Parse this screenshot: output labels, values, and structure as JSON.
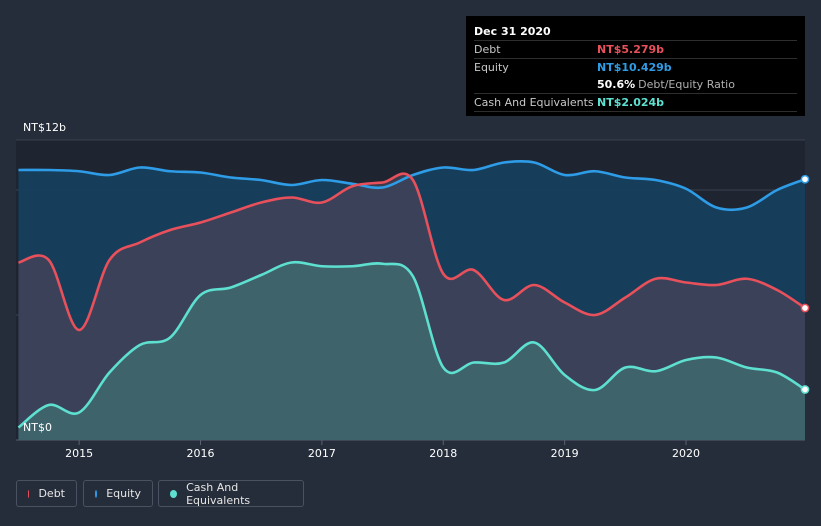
{
  "tooltip": {
    "date": "Dec 31 2020",
    "rows": [
      {
        "label": "Debt",
        "value": "NT$5.279b",
        "color": "#e8505b"
      },
      {
        "label": "Equity",
        "value": "NT$10.429b",
        "color": "#2e9ce6"
      },
      {
        "label": "",
        "value": "50.6%",
        "extra": "Debt/Equity Ratio",
        "color": "#ffffff"
      },
      {
        "label": "Cash And Equivalents",
        "value": "NT$2.024b",
        "color": "#5ee0d0"
      }
    ]
  },
  "legend": [
    {
      "label": "Debt",
      "color": "#e8505b"
    },
    {
      "label": "Equity",
      "color": "#2e9ce6"
    },
    {
      "label": "Cash And Equivalents",
      "color": "#5ee0d0"
    }
  ],
  "chart_data": {
    "type": "area",
    "title": "",
    "xlabel": "",
    "ylabel": "",
    "y_top_label": "NT$12b",
    "y_bottom_label": "NT$0",
    "ylim": [
      0,
      12
    ],
    "xlim": [
      2014.48,
      2020.98
    ],
    "x_ticks": [
      2015,
      2016,
      2017,
      2018,
      2019,
      2020
    ],
    "series": [
      {
        "name": "Equity",
        "color": "#2e9ce6",
        "x": [
          2014.5,
          2014.75,
          2015.0,
          2015.25,
          2015.5,
          2015.75,
          2016.0,
          2016.25,
          2016.5,
          2016.75,
          2017.0,
          2017.25,
          2017.5,
          2017.75,
          2018.0,
          2018.25,
          2018.5,
          2018.75,
          2019.0,
          2019.25,
          2019.5,
          2019.75,
          2020.0,
          2020.25,
          2020.5,
          2020.75,
          2020.98
        ],
        "values": [
          10.8,
          10.8,
          10.75,
          10.6,
          10.9,
          10.75,
          10.7,
          10.5,
          10.4,
          10.2,
          10.4,
          10.25,
          10.1,
          10.6,
          10.9,
          10.8,
          11.1,
          11.1,
          10.6,
          10.75,
          10.5,
          10.4,
          10.05,
          9.3,
          9.3,
          10.0,
          10.43
        ]
      },
      {
        "name": "Debt",
        "color": "#e8505b",
        "x": [
          2014.5,
          2014.75,
          2015.0,
          2015.25,
          2015.5,
          2015.75,
          2016.0,
          2016.25,
          2016.5,
          2016.75,
          2017.0,
          2017.25,
          2017.5,
          2017.75,
          2018.0,
          2018.25,
          2018.5,
          2018.75,
          2019.0,
          2019.25,
          2019.5,
          2019.75,
          2020.0,
          2020.25,
          2020.5,
          2020.75,
          2020.98
        ],
        "values": [
          7.1,
          7.2,
          4.4,
          7.2,
          7.9,
          8.4,
          8.7,
          9.1,
          9.5,
          9.7,
          9.5,
          10.15,
          10.3,
          10.4,
          6.65,
          6.8,
          5.6,
          6.2,
          5.5,
          5.0,
          5.7,
          6.45,
          6.3,
          6.2,
          6.45,
          6.0,
          5.28
        ]
      },
      {
        "name": "Cash And Equivalents",
        "color": "#5ee0d0",
        "x": [
          2014.5,
          2014.75,
          2015.0,
          2015.25,
          2015.5,
          2015.75,
          2016.0,
          2016.25,
          2016.5,
          2016.75,
          2017.0,
          2017.25,
          2017.5,
          2017.75,
          2018.0,
          2018.25,
          2018.5,
          2018.75,
          2019.0,
          2019.25,
          2019.5,
          2019.75,
          2020.0,
          2020.25,
          2020.5,
          2020.75,
          2020.98
        ],
        "values": [
          0.5,
          1.4,
          1.1,
          2.7,
          3.8,
          4.1,
          5.8,
          6.1,
          6.6,
          7.1,
          6.95,
          6.95,
          7.05,
          6.55,
          2.9,
          3.1,
          3.1,
          3.9,
          2.6,
          2.0,
          2.9,
          2.75,
          3.2,
          3.3,
          2.9,
          2.7,
          2.02
        ]
      }
    ]
  }
}
